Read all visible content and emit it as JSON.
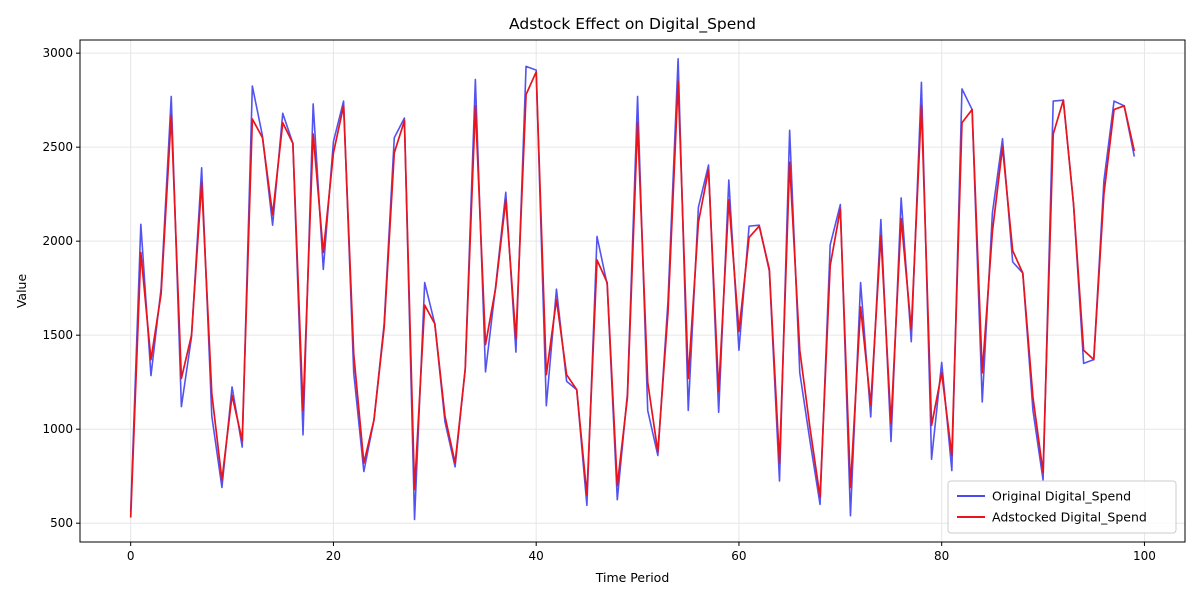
{
  "chart_data": {
    "type": "line",
    "title": "Adstock Effect on Digital_Spend",
    "xlabel": "Time Period",
    "ylabel": "Value",
    "xlim": [
      -5,
      104
    ],
    "ylim": [
      400,
      3070
    ],
    "x_ticks": [
      0,
      20,
      40,
      60,
      80,
      100
    ],
    "y_ticks": [
      500,
      1000,
      1500,
      2000,
      2500,
      3000
    ],
    "grid": true,
    "legend_position": "lower-right",
    "x": [
      0,
      1,
      2,
      3,
      4,
      5,
      6,
      7,
      8,
      9,
      10,
      11,
      12,
      13,
      14,
      15,
      16,
      17,
      18,
      19,
      20,
      21,
      22,
      23,
      24,
      25,
      26,
      27,
      28,
      29,
      30,
      31,
      32,
      33,
      34,
      35,
      36,
      37,
      38,
      39,
      40,
      41,
      42,
      43,
      44,
      45,
      46,
      47,
      48,
      49,
      50,
      51,
      52,
      53,
      54,
      55,
      56,
      57,
      58,
      59,
      60,
      61,
      62,
      63,
      64,
      65,
      66,
      67,
      68,
      69,
      70,
      71,
      72,
      73,
      74,
      75,
      76,
      77,
      78,
      79,
      80,
      81,
      82,
      83,
      84,
      85,
      86,
      87,
      88,
      89,
      90,
      91,
      92,
      93,
      94,
      95,
      96,
      97,
      98,
      99
    ],
    "series": [
      {
        "name": "Original Digital_Spend",
        "color": "#4a4af0",
        "values": [
          560,
          2090,
          1285,
          1750,
          2770,
          1120,
          1490,
          2390,
          1070,
          690,
          1225,
          905,
          2825,
          2560,
          2085,
          2680,
          2520,
          970,
          2730,
          1850,
          2530,
          2745,
          1300,
          775,
          1050,
          1560,
          2550,
          2655,
          520,
          1780,
          1560,
          1040,
          800,
          1320,
          2860,
          1305,
          1760,
          2260,
          1410,
          2930,
          2910,
          1125,
          1745,
          1255,
          1210,
          595,
          2025,
          1770,
          625,
          1190,
          2770,
          1100,
          860,
          1680,
          2970,
          1100,
          2180,
          2405,
          1090,
          2325,
          1420,
          2080,
          2085,
          1840,
          725,
          2590,
          1300,
          940,
          600,
          1980,
          2195,
          540,
          1780,
          1065,
          2115,
          935,
          2230,
          1465,
          2845,
          840,
          1355,
          780,
          2810,
          2700,
          1145,
          2150,
          2545,
          1890,
          1830,
          1100,
          730,
          2745,
          2750,
          2200,
          1350,
          1370,
          2320,
          2745,
          2720,
          2450
        ]
      },
      {
        "name": "Adstocked Digital_Spend",
        "color": "#e8141e",
        "values": [
          530,
          1940,
          1370,
          1720,
          2670,
          1270,
          1500,
          2310,
          1190,
          730,
          1180,
          940,
          2650,
          2550,
          2140,
          2630,
          2520,
          1100,
          2570,
          1940,
          2470,
          2720,
          1400,
          820,
          1050,
          1540,
          2470,
          2640,
          680,
          1660,
          1560,
          1070,
          820,
          1320,
          2720,
          1450,
          1750,
          2220,
          1480,
          2780,
          2900,
          1290,
          1690,
          1290,
          1210,
          650,
          1900,
          1780,
          700,
          1170,
          2630,
          1250,
          880,
          1620,
          2850,
          1270,
          2100,
          2380,
          1200,
          2220,
          1520,
          2020,
          2080,
          1850,
          820,
          2420,
          1420,
          1010,
          640,
          1870,
          2170,
          690,
          1650,
          1130,
          2030,
          1030,
          2120,
          1530,
          2720,
          1020,
          1300,
          860,
          2630,
          2700,
          1300,
          2050,
          2500,
          1950,
          1830,
          1170,
          770,
          2570,
          2750,
          2200,
          1420,
          1370,
          2250,
          2700,
          2720,
          2480
        ]
      }
    ]
  }
}
